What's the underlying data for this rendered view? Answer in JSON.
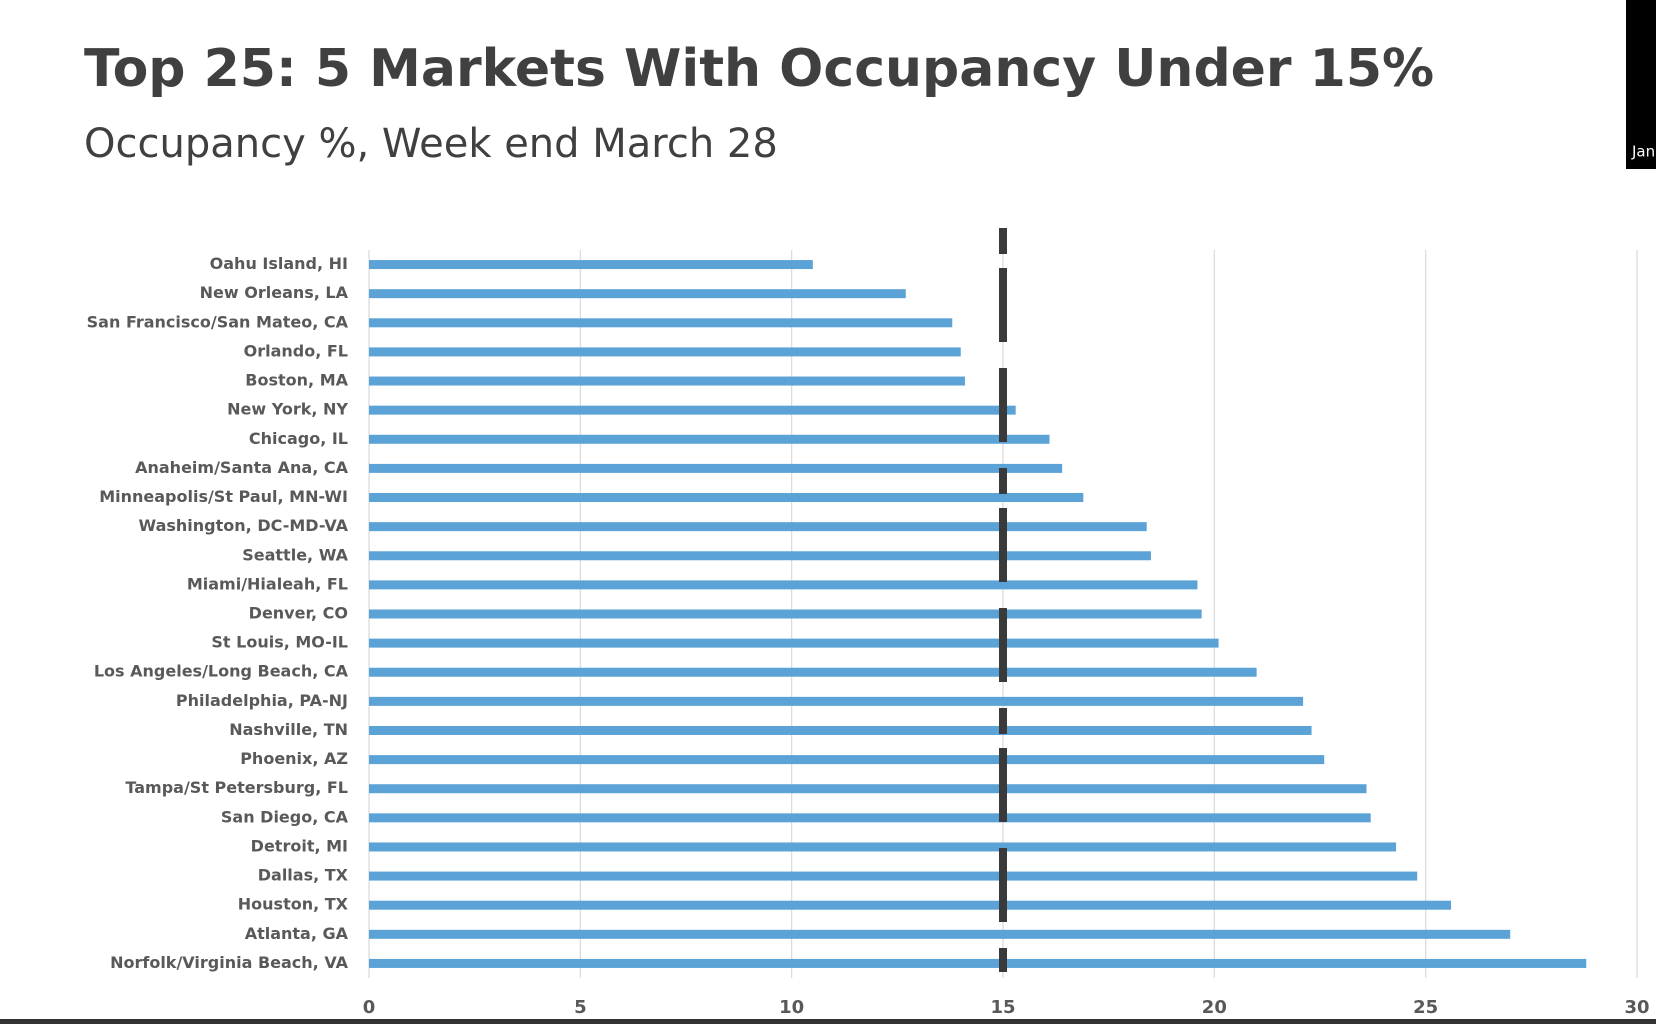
{
  "chart_data": {
    "type": "hbar",
    "title": "Top 25: 5 Markets With Occupancy Under 15%",
    "subtitle": "Occupancy %, Week end March 28",
    "side_panel_text": "Jan",
    "categories": [
      "Oahu Island, HI",
      "New Orleans, LA",
      "San Francisco/San Mateo, CA",
      "Orlando, FL",
      "Boston, MA",
      "New York, NY",
      "Chicago, IL",
      "Anaheim/Santa Ana, CA",
      "Minneapolis/St Paul, MN-WI",
      "Washington, DC-MD-VA",
      "Seattle, WA",
      "Miami/Hialeah, FL",
      "Denver, CO",
      "St Louis, MO-IL",
      "Los Angeles/Long Beach, CA",
      "Philadelphia, PA-NJ",
      "Nashville, TN",
      "Phoenix, AZ",
      "Tampa/St Petersburg, FL",
      "San Diego, CA",
      "Detroit, MI",
      "Dallas, TX",
      "Houston, TX",
      "Atlanta, GA",
      "Norfolk/Virginia Beach, VA"
    ],
    "values": [
      10.5,
      12.7,
      13.8,
      14.0,
      14.1,
      15.3,
      16.1,
      16.4,
      16.9,
      18.4,
      18.5,
      19.6,
      19.7,
      20.1,
      21.0,
      22.1,
      22.3,
      22.6,
      23.6,
      23.7,
      24.3,
      24.8,
      25.6,
      27.0,
      28.8
    ],
    "color": "#5ba3d6",
    "reference_value": 15,
    "reference_color": "#3a3a3a",
    "xlim": [
      0,
      30
    ],
    "xticks": [
      0,
      5,
      10,
      15,
      20,
      25,
      30
    ],
    "grid": true
  }
}
